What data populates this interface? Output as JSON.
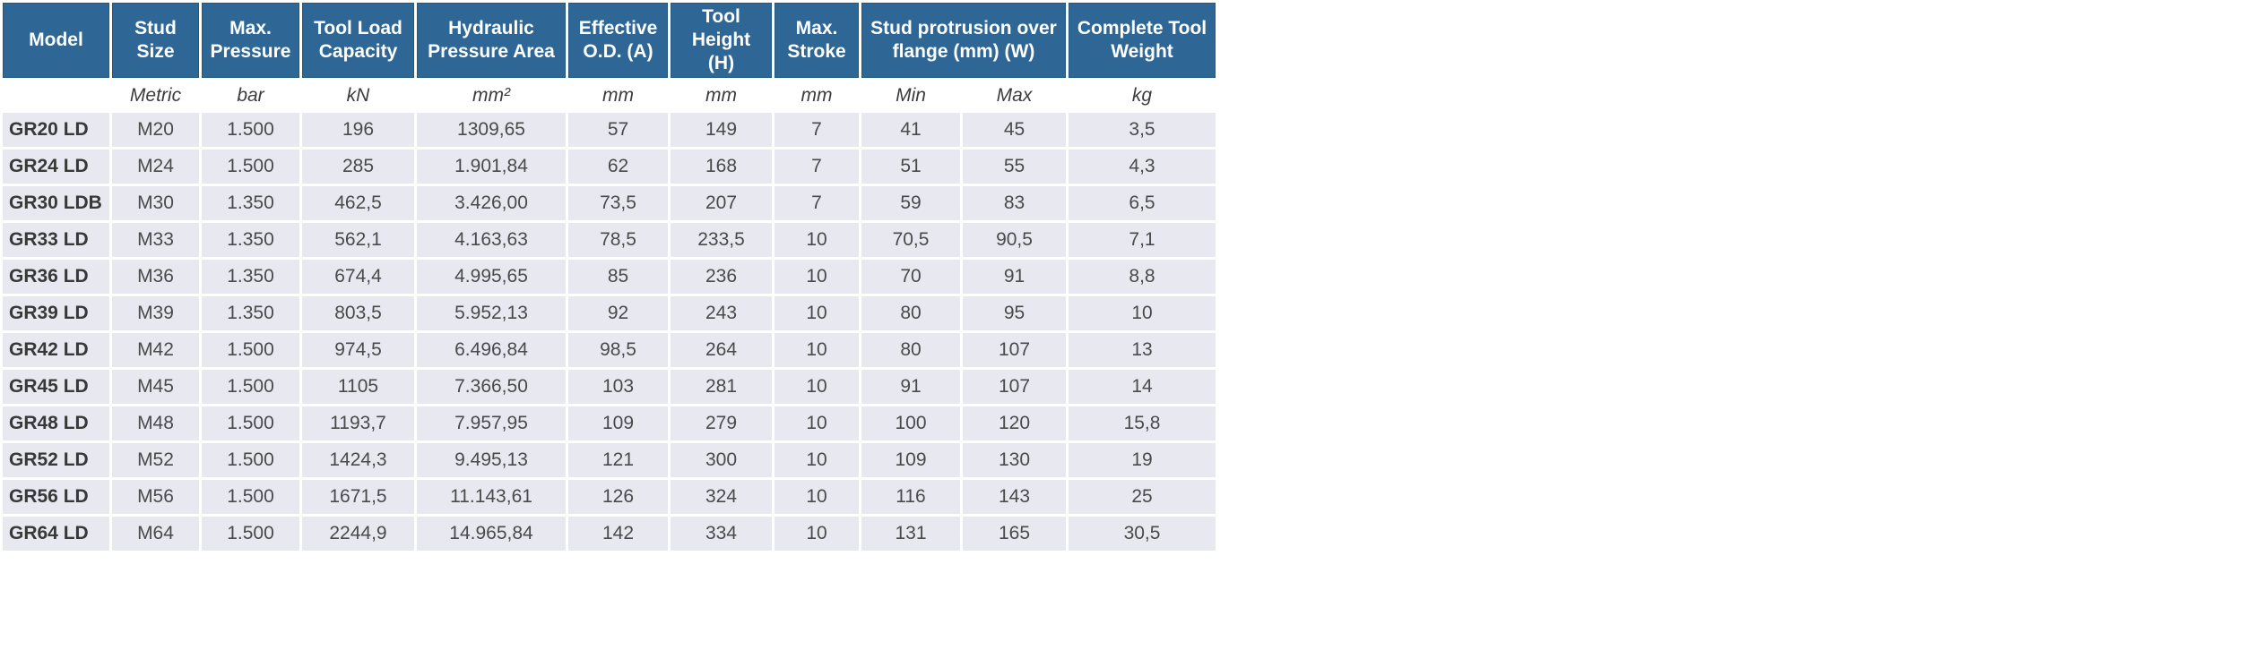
{
  "page": {
    "background_color": "#ffffff"
  },
  "table": {
    "header_bg_color": "#2e6795",
    "header_border_color": "#24587f",
    "row_bg_color": "#e7e8f0",
    "columns": [
      {
        "label": "Model"
      },
      {
        "label": "Stud Size"
      },
      {
        "label": "Max. Pressure"
      },
      {
        "label": "Tool Load Capacity"
      },
      {
        "label": "Hydraulic Pressure Area"
      },
      {
        "label": "Effective O.D. (A)"
      },
      {
        "label": "Tool Height (H)"
      },
      {
        "label": "Max. Stroke"
      },
      {
        "label": "Stud protrusion over flange (mm) (W)"
      },
      {
        "label": "Complete Tool Weight"
      }
    ],
    "units": [
      "",
      "Metric",
      "bar",
      "kN",
      "mm²",
      "mm",
      "mm",
      "mm",
      "Min",
      "Max",
      "kg"
    ],
    "rows": [
      {
        "model": "GR20 LD",
        "values": [
          "M20",
          "1.500",
          "196",
          "1309,65",
          "57",
          "149",
          "7",
          "41",
          "45",
          "3,5"
        ]
      },
      {
        "model": "GR24 LD",
        "values": [
          "M24",
          "1.500",
          "285",
          "1.901,84",
          "62",
          "168",
          "7",
          "51",
          "55",
          "4,3"
        ]
      },
      {
        "model": "GR30 LDB",
        "values": [
          "M30",
          "1.350",
          "462,5",
          "3.426,00",
          "73,5",
          "207",
          "7",
          "59",
          "83",
          "6,5"
        ]
      },
      {
        "model": "GR33 LD",
        "values": [
          "M33",
          "1.350",
          "562,1",
          "4.163,63",
          "78,5",
          "233,5",
          "10",
          "70,5",
          "90,5",
          "7,1"
        ]
      },
      {
        "model": "GR36 LD",
        "values": [
          "M36",
          "1.350",
          "674,4",
          "4.995,65",
          "85",
          "236",
          "10",
          "70",
          "91",
          "8,8"
        ]
      },
      {
        "model": "GR39 LD",
        "values": [
          "M39",
          "1.350",
          "803,5",
          "5.952,13",
          "92",
          "243",
          "10",
          "80",
          "95",
          "10"
        ]
      },
      {
        "model": "GR42 LD",
        "values": [
          "M42",
          "1.500",
          "974,5",
          "6.496,84",
          "98,5",
          "264",
          "10",
          "80",
          "107",
          "13"
        ]
      },
      {
        "model": "GR45 LD",
        "values": [
          "M45",
          "1.500",
          "1105",
          "7.366,50",
          "103",
          "281",
          "10",
          "91",
          "107",
          "14"
        ]
      },
      {
        "model": "GR48 LD",
        "values": [
          "M48",
          "1.500",
          "1193,7",
          "7.957,95",
          "109",
          "279",
          "10",
          "100",
          "120",
          "15,8"
        ]
      },
      {
        "model": "GR52 LD",
        "values": [
          "M52",
          "1.500",
          "1424,3",
          "9.495,13",
          "121",
          "300",
          "10",
          "109",
          "130",
          "19"
        ]
      },
      {
        "model": "GR56 LD",
        "values": [
          "M56",
          "1.500",
          "1671,5",
          "11.143,61",
          "126",
          "324",
          "10",
          "116",
          "143",
          "25"
        ]
      },
      {
        "model": "GR64 LD",
        "values": [
          "M64",
          "1.500",
          "2244,9",
          "14.965,84",
          "142",
          "334",
          "10",
          "131",
          "165",
          "30,5"
        ]
      }
    ]
  }
}
